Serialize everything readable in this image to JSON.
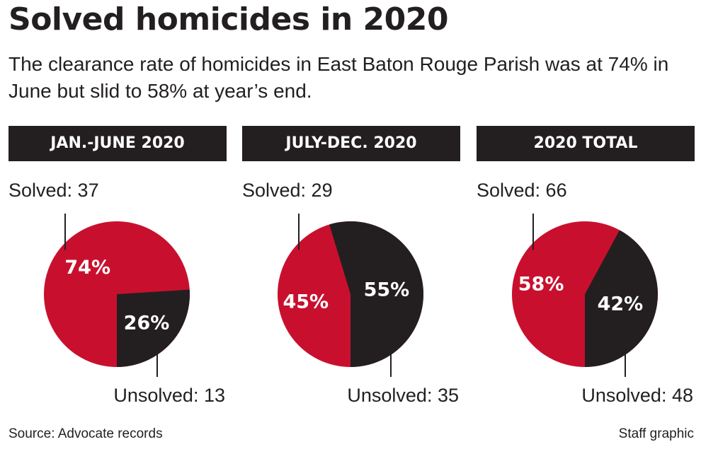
{
  "title": "Solved homicides in 2020",
  "subtitle": "The clearance rate of homicides in East Baton Rouge Parish was at 74% in June but slid to 58% at year’s end.",
  "footer": {
    "source": "Source: Advocate records",
    "credit": "Staff graphic"
  },
  "colors": {
    "solved": "#c8102e",
    "unsolved": "#231f20",
    "header_bg": "#231f20"
  },
  "chart_data": [
    {
      "type": "pie",
      "title": "JAN.-JUNE 2020",
      "slices": [
        {
          "name": "Solved",
          "value": 37,
          "percent": 74,
          "label": "Solved: 37",
          "pct_label": "74%"
        },
        {
          "name": "Unsolved",
          "value": 13,
          "percent": 26,
          "label": "Unsolved: 13",
          "pct_label": "26%"
        }
      ]
    },
    {
      "type": "pie",
      "title": "JULY-DEC. 2020",
      "slices": [
        {
          "name": "Solved",
          "value": 29,
          "percent": 45,
          "label": "Solved: 29",
          "pct_label": "45%"
        },
        {
          "name": "Unsolved",
          "value": 35,
          "percent": 55,
          "label": "Unsolved: 35",
          "pct_label": "55%"
        }
      ]
    },
    {
      "type": "pie",
      "title": "2020 TOTAL",
      "slices": [
        {
          "name": "Solved",
          "value": 66,
          "percent": 58,
          "label": "Solved: 66",
          "pct_label": "58%"
        },
        {
          "name": "Unsolved",
          "value": 48,
          "percent": 42,
          "label": "Unsolved: 48",
          "pct_label": "42%"
        }
      ]
    }
  ]
}
